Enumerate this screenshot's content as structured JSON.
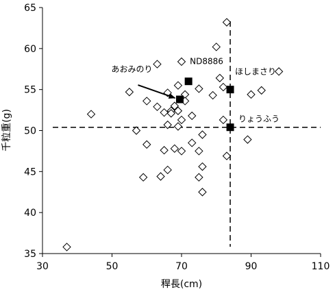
{
  "chart_data": {
    "type": "scatter",
    "xlabel": "稈長(cm)",
    "ylabel": "千粒重(g)",
    "xlim": [
      30,
      110
    ],
    "ylim": [
      35,
      65
    ],
    "xticks": [
      "30",
      "50",
      "70",
      "90",
      "110"
    ],
    "yticks": [
      "35",
      "40",
      "45",
      "50",
      "55",
      "60",
      "65"
    ],
    "grid": false,
    "series": [
      {
        "marker": "open-diamond",
        "points": [
          [
            37,
            35.8
          ],
          [
            44,
            52.0
          ],
          [
            55,
            54.7
          ],
          [
            57,
            50.0
          ],
          [
            59,
            44.3
          ],
          [
            60,
            53.6
          ],
          [
            60,
            48.3
          ],
          [
            63,
            58.1
          ],
          [
            63,
            52.9
          ],
          [
            64,
            44.4
          ],
          [
            65,
            52.2
          ],
          [
            65,
            47.6
          ],
          [
            66,
            54.6
          ],
          [
            66,
            50.7
          ],
          [
            66,
            45.2
          ],
          [
            67,
            52.4
          ],
          [
            67,
            52.1
          ],
          [
            68,
            53.0
          ],
          [
            68,
            47.8
          ],
          [
            69,
            55.5
          ],
          [
            69,
            52.4
          ],
          [
            69,
            50.5
          ],
          [
            70,
            58.4
          ],
          [
            70,
            51.3
          ],
          [
            70,
            47.5
          ],
          [
            71,
            54.4
          ],
          [
            71,
            53.6
          ],
          [
            73,
            51.8
          ],
          [
            73,
            48.5
          ],
          [
            75,
            55.1
          ],
          [
            75,
            47.5
          ],
          [
            75,
            44.3
          ],
          [
            76,
            49.5
          ],
          [
            76,
            45.6
          ],
          [
            76,
            42.5
          ],
          [
            79,
            54.3
          ],
          [
            80,
            60.2
          ],
          [
            81,
            56.4
          ],
          [
            82,
            55.3
          ],
          [
            82,
            51.3
          ],
          [
            83,
            63.2
          ],
          [
            83,
            46.9
          ],
          [
            89,
            48.9
          ],
          [
            90,
            54.4
          ],
          [
            93,
            54.9
          ],
          [
            98,
            57.2
          ]
        ]
      },
      {
        "marker": "filled-square",
        "points": [
          [
            69.5,
            53.8
          ],
          [
            72,
            56.0
          ],
          [
            84,
            55.0
          ],
          [
            84,
            50.4
          ]
        ]
      }
    ],
    "annotations": [
      {
        "text": "ND8886",
        "x": 72,
        "y": 56.0
      },
      {
        "text": "あおみのり",
        "x": 69.5,
        "y": 53.8
      },
      {
        "text": "ほしまさり",
        "x": 84,
        "y": 55.0
      },
      {
        "text": "りょうふう",
        "x": 84,
        "y": 50.4
      }
    ],
    "reference_lines": [
      {
        "orientation": "horizontal",
        "y": 50.4,
        "style": "dashed"
      },
      {
        "orientation": "vertical",
        "x": 84,
        "style": "dashed"
      }
    ]
  }
}
